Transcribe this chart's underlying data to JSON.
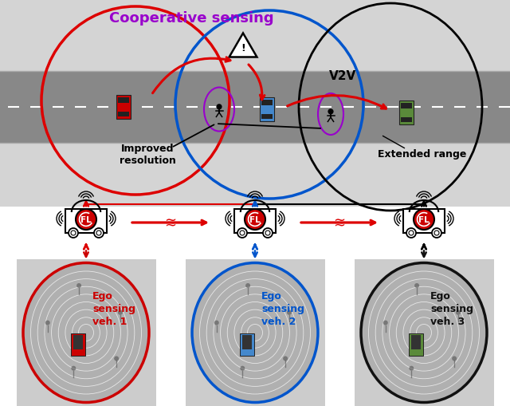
{
  "title": "Cooperative sensing",
  "title_color": "#cc00cc",
  "white": "#ffffff",
  "black": "#000000",
  "red": "#dd0000",
  "blue": "#0055cc",
  "green_veh": "#5a8a3a",
  "purple": "#9900cc",
  "road_bg": "#b0b0b0",
  "scene_bg": "#c8c8c8",
  "veh1_color": "#cc0000",
  "veh2_color": "#4488cc",
  "veh3_color": "#5a8a3a",
  "ego1_circle_color": "#cc0000",
  "ego2_circle_color": "#0055cc",
  "ego3_circle_color": "#111111",
  "ego1_text": "Ego\nsensing\nveh. 1",
  "ego2_text": "Ego\nsensing\nveh. 2",
  "ego3_text": "Ego\nsensing\nveh. 3",
  "ego1_text_color": "#cc0000",
  "ego2_text_color": "#0055cc",
  "ego3_text_color": "#111111",
  "improved_text": "Improved\nresolution",
  "extended_text": "Extended range",
  "v2v_text": "V2V",
  "fl_text": "FL",
  "fl_circle_color": "#cc0000"
}
